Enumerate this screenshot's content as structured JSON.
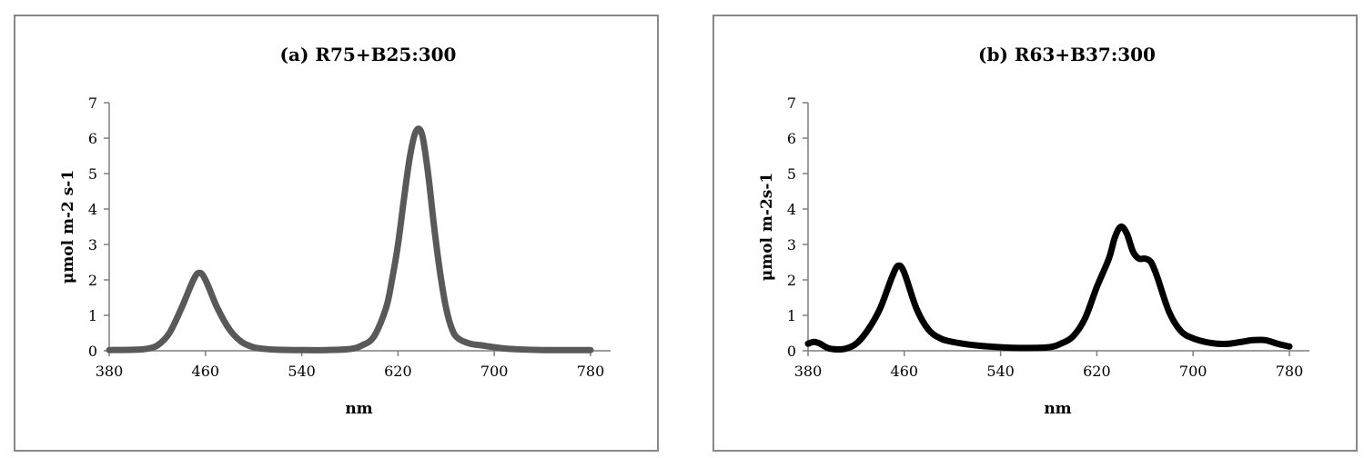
{
  "chart_data": [
    {
      "type": "line",
      "title": "(a) R75+B25:300",
      "xlabel": "nm",
      "ylabel": "μmol m-2 s-1",
      "xlim": [
        380,
        780
      ],
      "ylim": [
        0,
        7
      ],
      "xticks": [
        380,
        460,
        540,
        620,
        700,
        780
      ],
      "yticks": [
        0,
        1,
        2,
        3,
        4,
        5,
        6,
        7
      ],
      "grid": false,
      "legend": "none",
      "series": [
        {
          "color": "#595959",
          "x": [
            380,
            400,
            410,
            420,
            430,
            440,
            450,
            455,
            460,
            470,
            480,
            490,
            500,
            510,
            520,
            540,
            560,
            580,
            590,
            600,
            610,
            615,
            620,
            625,
            630,
            635,
            640,
            645,
            650,
            655,
            660,
            665,
            670,
            680,
            690,
            700,
            710,
            720,
            740,
            760,
            780
          ],
          "y": [
            0.02,
            0.03,
            0.05,
            0.15,
            0.5,
            1.2,
            2.0,
            2.2,
            2.0,
            1.2,
            0.6,
            0.25,
            0.1,
            0.05,
            0.03,
            0.02,
            0.02,
            0.05,
            0.15,
            0.4,
            1.2,
            2.0,
            3.0,
            4.3,
            5.5,
            6.2,
            6.1,
            5.0,
            3.5,
            2.2,
            1.2,
            0.6,
            0.35,
            0.2,
            0.15,
            0.1,
            0.06,
            0.04,
            0.02,
            0.02,
            0.02
          ]
        }
      ]
    },
    {
      "type": "line",
      "title": "(b) R63+B37:300",
      "xlabel": "nm",
      "ylabel": "μmol m-2s-1",
      "xlim": [
        380,
        780
      ],
      "ylim": [
        0,
        7
      ],
      "xticks": [
        380,
        460,
        540,
        620,
        700,
        780
      ],
      "yticks": [
        0,
        1,
        2,
        3,
        4,
        5,
        6,
        7
      ],
      "grid": false,
      "legend": "none",
      "series": [
        {
          "color": "#000000",
          "x": [
            380,
            385,
            390,
            395,
            400,
            410,
            420,
            430,
            440,
            450,
            455,
            460,
            470,
            480,
            490,
            500,
            520,
            540,
            560,
            580,
            590,
            600,
            610,
            620,
            630,
            635,
            640,
            645,
            650,
            655,
            660,
            665,
            670,
            680,
            690,
            700,
            710,
            720,
            730,
            740,
            750,
            760,
            770,
            780
          ],
          "y": [
            0.2,
            0.25,
            0.2,
            0.1,
            0.05,
            0.05,
            0.2,
            0.6,
            1.2,
            2.1,
            2.4,
            2.2,
            1.2,
            0.6,
            0.35,
            0.25,
            0.15,
            0.1,
            0.08,
            0.1,
            0.2,
            0.4,
            0.9,
            1.8,
            2.6,
            3.2,
            3.5,
            3.3,
            2.8,
            2.6,
            2.6,
            2.5,
            2.1,
            1.1,
            0.55,
            0.35,
            0.25,
            0.2,
            0.2,
            0.25,
            0.3,
            0.3,
            0.2,
            0.12
          ]
        }
      ]
    }
  ]
}
